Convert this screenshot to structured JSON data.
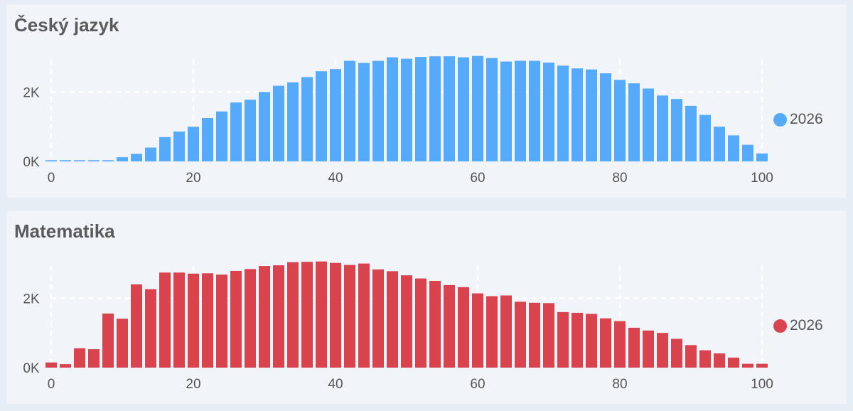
{
  "chart_data": [
    {
      "type": "bar",
      "title": "Český jazyk",
      "xlabel": "",
      "ylabel": "",
      "xlim": [
        0,
        100
      ],
      "ylim": [
        0,
        3300
      ],
      "x_ticks": [
        "0",
        "20",
        "40",
        "60",
        "80",
        "100"
      ],
      "y_ticks": [
        "0K",
        "2K"
      ],
      "grid": "dashed",
      "legend_position": "right",
      "color": "#55aaf9",
      "series": [
        {
          "name": "2026",
          "x": [
            0,
            2,
            4,
            6,
            8,
            10,
            12,
            14,
            16,
            18,
            20,
            22,
            24,
            26,
            28,
            30,
            32,
            34,
            36,
            38,
            40,
            42,
            44,
            46,
            48,
            50,
            52,
            54,
            56,
            58,
            60,
            62,
            64,
            66,
            68,
            70,
            72,
            74,
            76,
            78,
            80,
            82,
            84,
            86,
            88,
            90,
            92,
            94,
            96,
            98,
            100
          ],
          "values": [
            35,
            35,
            35,
            35,
            35,
            120,
            220,
            400,
            700,
            860,
            1000,
            1250,
            1440,
            1700,
            1780,
            2000,
            2180,
            2280,
            2430,
            2600,
            2660,
            2900,
            2840,
            2900,
            3000,
            2960,
            3010,
            3030,
            3030,
            3000,
            3040,
            2980,
            2880,
            2900,
            2900,
            2850,
            2760,
            2680,
            2650,
            2540,
            2350,
            2250,
            2100,
            1900,
            1800,
            1600,
            1340,
            1000,
            750,
            480,
            230
          ]
        }
      ]
    },
    {
      "type": "bar",
      "title": "Matematika",
      "xlabel": "",
      "ylabel": "",
      "xlim": [
        0,
        100
      ],
      "ylim": [
        0,
        3300
      ],
      "x_ticks": [
        "0",
        "20",
        "40",
        "60",
        "80",
        "100"
      ],
      "y_ticks": [
        "0K",
        "2K"
      ],
      "grid": "dashed",
      "legend_position": "right",
      "color": "#d9434e",
      "series": [
        {
          "name": "2026",
          "x": [
            0,
            2,
            4,
            6,
            8,
            10,
            12,
            14,
            16,
            18,
            20,
            22,
            24,
            26,
            28,
            30,
            32,
            34,
            36,
            38,
            40,
            42,
            44,
            46,
            48,
            50,
            52,
            54,
            56,
            58,
            60,
            62,
            64,
            66,
            68,
            70,
            72,
            74,
            76,
            78,
            80,
            82,
            84,
            86,
            88,
            90,
            92,
            94,
            96,
            98,
            100
          ],
          "values": [
            150,
            100,
            560,
            530,
            1560,
            1410,
            2400,
            2260,
            2740,
            2740,
            2710,
            2720,
            2680,
            2790,
            2840,
            2930,
            2950,
            3040,
            3050,
            3060,
            3020,
            2960,
            3000,
            2830,
            2780,
            2660,
            2570,
            2500,
            2380,
            2320,
            2140,
            2060,
            2080,
            1900,
            1870,
            1860,
            1600,
            1580,
            1550,
            1420,
            1340,
            1150,
            1070,
            1000,
            830,
            650,
            500,
            410,
            290,
            110,
            110
          ]
        }
      ]
    }
  ]
}
